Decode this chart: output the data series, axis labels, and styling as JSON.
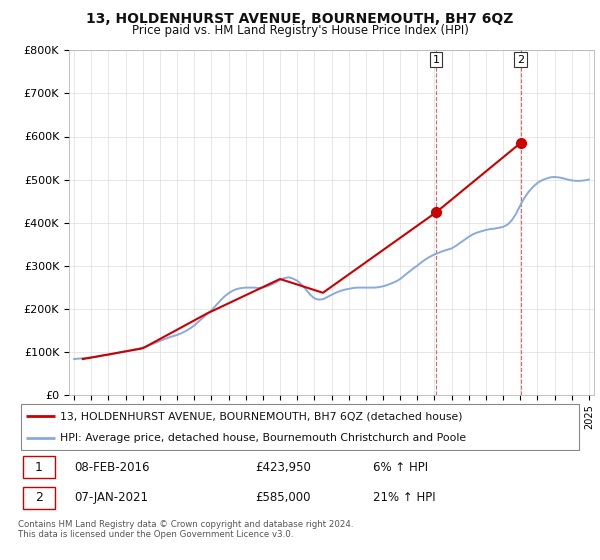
{
  "title": "13, HOLDENHURST AVENUE, BOURNEMOUTH, BH7 6QZ",
  "subtitle": "Price paid vs. HM Land Registry's House Price Index (HPI)",
  "footer": "Contains HM Land Registry data © Crown copyright and database right 2024.\nThis data is licensed under the Open Government Licence v3.0.",
  "legend_line1": "13, HOLDENHURST AVENUE, BOURNEMOUTH, BH7 6QZ (detached house)",
  "legend_line2": "HPI: Average price, detached house, Bournemouth Christchurch and Poole",
  "annotation1_label": "1",
  "annotation1_date": "08-FEB-2016",
  "annotation1_price": "£423,950",
  "annotation1_hpi": "6% ↑ HPI",
  "annotation2_label": "2",
  "annotation2_date": "07-JAN-2021",
  "annotation2_price": "£585,000",
  "annotation2_hpi": "21% ↑ HPI",
  "line_color_red": "#cc0000",
  "line_color_blue": "#88aadd",
  "dot_color_red": "#cc0000",
  "background_color": "#ffffff",
  "grid_color": "#dddddd",
  "ylim": [
    0,
    800000
  ],
  "yticks": [
    0,
    100000,
    200000,
    300000,
    400000,
    500000,
    600000,
    700000,
    800000
  ],
  "ytick_labels": [
    "£0",
    "£100K",
    "£200K",
    "£300K",
    "£400K",
    "£500K",
    "£600K",
    "£700K",
    "£800K"
  ],
  "hpi_years": [
    1995.0,
    1995.25,
    1995.5,
    1995.75,
    1996.0,
    1996.25,
    1996.5,
    1996.75,
    1997.0,
    1997.25,
    1997.5,
    1997.75,
    1998.0,
    1998.25,
    1998.5,
    1998.75,
    1999.0,
    1999.25,
    1999.5,
    1999.75,
    2000.0,
    2000.25,
    2000.5,
    2000.75,
    2001.0,
    2001.25,
    2001.5,
    2001.75,
    2002.0,
    2002.25,
    2002.5,
    2002.75,
    2003.0,
    2003.25,
    2003.5,
    2003.75,
    2004.0,
    2004.25,
    2004.5,
    2004.75,
    2005.0,
    2005.25,
    2005.5,
    2005.75,
    2006.0,
    2006.25,
    2006.5,
    2006.75,
    2007.0,
    2007.25,
    2007.5,
    2007.75,
    2008.0,
    2008.25,
    2008.5,
    2008.75,
    2009.0,
    2009.25,
    2009.5,
    2009.75,
    2010.0,
    2010.25,
    2010.5,
    2010.75,
    2011.0,
    2011.25,
    2011.5,
    2011.75,
    2012.0,
    2012.25,
    2012.5,
    2012.75,
    2013.0,
    2013.25,
    2013.5,
    2013.75,
    2014.0,
    2014.25,
    2014.5,
    2014.75,
    2015.0,
    2015.25,
    2015.5,
    2015.75,
    2016.0,
    2016.25,
    2016.5,
    2016.75,
    2017.0,
    2017.25,
    2017.5,
    2017.75,
    2018.0,
    2018.25,
    2018.5,
    2018.75,
    2019.0,
    2019.25,
    2019.5,
    2019.75,
    2020.0,
    2020.25,
    2020.5,
    2020.75,
    2021.0,
    2021.25,
    2021.5,
    2021.75,
    2022.0,
    2022.25,
    2022.5,
    2022.75,
    2023.0,
    2023.25,
    2023.5,
    2023.75,
    2024.0,
    2024.25,
    2024.5,
    2024.75,
    2025.0
  ],
  "hpi_values": [
    83000,
    84000,
    85000,
    86000,
    87000,
    88000,
    90000,
    92000,
    93000,
    95000,
    97000,
    99000,
    101000,
    103000,
    105000,
    107000,
    110000,
    113000,
    117000,
    121000,
    125000,
    129000,
    133000,
    136000,
    139000,
    143000,
    148000,
    154000,
    161000,
    170000,
    179000,
    188000,
    196000,
    207000,
    218000,
    228000,
    236000,
    242000,
    246000,
    248000,
    249000,
    249000,
    249000,
    248000,
    249000,
    252000,
    256000,
    261000,
    267000,
    271000,
    273000,
    270000,
    265000,
    256000,
    245000,
    233000,
    224000,
    221000,
    222000,
    227000,
    232000,
    237000,
    241000,
    244000,
    246000,
    248000,
    249000,
    249000,
    249000,
    249000,
    249000,
    250000,
    252000,
    255000,
    259000,
    263000,
    269000,
    277000,
    285000,
    293000,
    300000,
    308000,
    315000,
    321000,
    326000,
    330000,
    334000,
    337000,
    340000,
    346000,
    353000,
    360000,
    367000,
    373000,
    377000,
    380000,
    383000,
    385000,
    386000,
    388000,
    390000,
    395000,
    405000,
    420000,
    440000,
    458000,
    472000,
    483000,
    492000,
    498000,
    502000,
    505000,
    506000,
    505000,
    503000,
    500000,
    498000,
    497000,
    497000,
    498000,
    500000
  ],
  "price_years": [
    1995.5,
    1999.0,
    2002.75,
    2007.0,
    2009.5,
    2016.1,
    2021.02
  ],
  "price_values": [
    83000,
    108000,
    189000,
    269000,
    237000,
    424000,
    585000
  ],
  "vline1_x": 2016.1,
  "vline2_x": 2021.02,
  "dot1_x": 2016.1,
  "dot1_y": 424000,
  "dot2_x": 2021.02,
  "dot2_y": 585000,
  "xlim_left": 1994.7,
  "xlim_right": 2025.3
}
